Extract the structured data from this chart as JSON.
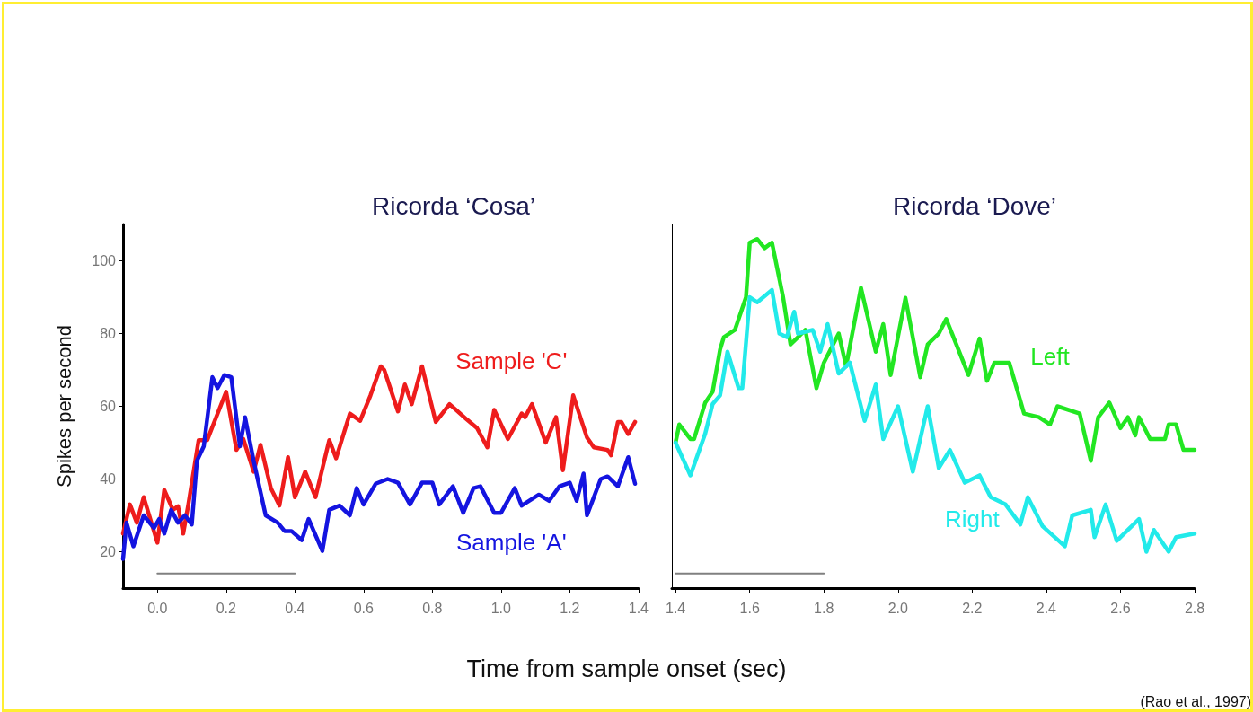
{
  "chart_data": [
    {
      "type": "line",
      "title": "Ricorda ‘Cosa’",
      "xlabel": "Time from sample onset (sec)",
      "ylabel": "Spikes per second",
      "marker": "none",
      "xlim": [
        -0.1,
        1.4
      ],
      "ylim": [
        10,
        110
      ],
      "xticks": [
        {
          "value": 0,
          "label": "0.0"
        },
        0.2,
        0.4,
        0.6,
        0.8,
        {
          "value": 1,
          "label": "1.0"
        },
        1.2,
        1.4
      ],
      "yticks": [
        20,
        40,
        60,
        80,
        100
      ],
      "series": [
        {
          "name": "Sample 'C'",
          "color": "#ee1c1c",
          "x": [
            -0.1,
            -0.08,
            -0.06,
            -0.04,
            0,
            0.02,
            0.045,
            0.06,
            0.075,
            0.09,
            0.12,
            0.145,
            0.2,
            0.23,
            0.25,
            0.28,
            0.3,
            0.33,
            0.355,
            0.38,
            0.4,
            0.43,
            0.46,
            0.5,
            0.52,
            0.56,
            0.59,
            0.62,
            0.65,
            0.66,
            0.7,
            0.72,
            0.74,
            0.77,
            0.81,
            0.85,
            0.9,
            0.93,
            0.96,
            0.98,
            1.02,
            1.06,
            1.07,
            1.09,
            1.13,
            1.16,
            1.18,
            1.21,
            1.25,
            1.27,
            1.31,
            1.32,
            1.34,
            1.35,
            1.37,
            1.39
          ],
          "values": [
            25,
            33,
            28,
            35,
            22.5,
            37,
            31.5,
            32.5,
            25,
            33,
            50.7,
            50.7,
            64,
            48,
            51,
            42,
            49.4,
            37.5,
            32.7,
            46,
            35,
            42,
            35,
            50.7,
            45.7,
            58,
            56,
            63,
            71,
            70,
            58.6,
            66,
            60.6,
            71,
            55.7,
            60.6,
            56.4,
            54,
            48.7,
            59,
            51,
            58,
            57,
            60.6,
            50,
            57,
            42.4,
            63,
            51.4,
            48.7,
            48,
            46.5,
            55.7,
            55.7,
            52.4,
            55.7
          ]
        },
        {
          "name": "Sample 'A'",
          "color": "#1414e0",
          "x": [
            -0.1,
            -0.09,
            -0.07,
            -0.04,
            -0.01,
            0.005,
            0.02,
            0.04,
            0.06,
            0.08,
            0.1,
            0.115,
            0.135,
            0.16,
            0.175,
            0.195,
            0.215,
            0.24,
            0.255,
            0.28,
            0.315,
            0.35,
            0.37,
            0.39,
            0.42,
            0.44,
            0.48,
            0.5,
            0.53,
            0.56,
            0.58,
            0.6,
            0.635,
            0.67,
            0.7,
            0.735,
            0.77,
            0.8,
            0.82,
            0.86,
            0.89,
            0.92,
            0.94,
            0.98,
            1,
            1.04,
            1.06,
            1.11,
            1.14,
            1.17,
            1.2,
            1.22,
            1.24,
            1.25,
            1.29,
            1.31,
            1.34,
            1.37,
            1.39
          ],
          "values": [
            18,
            28,
            21.5,
            30,
            26.5,
            29,
            25,
            31.5,
            28,
            30,
            27.5,
            45,
            49,
            68,
            65,
            68.6,
            68,
            49,
            57,
            45,
            30,
            28,
            25.7,
            25.7,
            23.2,
            29,
            20.2,
            31.5,
            32.7,
            30,
            37.5,
            33,
            38.7,
            40,
            39,
            33,
            39,
            39,
            33,
            38,
            30.7,
            37.5,
            38,
            30.7,
            30.7,
            37.5,
            32.7,
            35.7,
            34,
            38,
            39,
            34,
            41.5,
            30,
            40,
            40.7,
            38,
            46,
            38.7
          ]
        },
        {
          "color": "#808080",
          "x": [
            0,
            0.4
          ],
          "values": [
            14,
            14
          ]
        }
      ]
    },
    {
      "type": "line",
      "title": "Ricorda ‘Dove’",
      "marker": "none",
      "xlim": [
        1.39,
        2.8
      ],
      "ylim": [
        10,
        110
      ],
      "tick_labels": "x",
      "xticks": [
        1.4,
        1.6,
        1.8,
        {
          "value": 2,
          "label": "2.0"
        },
        2.2,
        2.4,
        2.6,
        2.8
      ],
      "yticks": [
        20,
        40,
        60,
        80,
        100
      ],
      "annotations": [
        "(Rao et al., 1997)"
      ],
      "series": [
        {
          "name": "Left",
          "color": "#22e622",
          "x": [
            1.4,
            1.41,
            1.44,
            1.45,
            1.48,
            1.5,
            1.52,
            1.53,
            1.56,
            1.59,
            1.6,
            1.62,
            1.64,
            1.66,
            1.69,
            1.71,
            1.73,
            1.75,
            1.78,
            1.8,
            1.84,
            1.86,
            1.9,
            1.94,
            1.96,
            1.98,
            2.02,
            2.06,
            2.08,
            2.11,
            2.13,
            2.19,
            2.22,
            2.24,
            2.26,
            2.3,
            2.34,
            2.38,
            2.41,
            2.43,
            2.49,
            2.52,
            2.54,
            2.57,
            2.6,
            2.62,
            2.64,
            2.65,
            2.68,
            2.72,
            2.73,
            2.75,
            2.77,
            2.8
          ],
          "values": [
            50,
            55,
            51,
            51,
            61,
            64,
            75.6,
            79,
            81,
            90,
            105,
            106,
            103.5,
            105,
            90,
            77,
            79,
            81,
            65,
            72,
            80,
            71,
            92.6,
            75,
            82.6,
            68.6,
            89.8,
            68,
            77,
            80,
            84,
            68.6,
            78.6,
            67,
            72,
            72,
            58,
            57,
            55,
            60,
            58,
            45,
            57,
            61,
            54,
            57,
            52,
            57,
            51,
            51,
            55,
            55,
            48,
            48
          ]
        },
        {
          "name": "Right",
          "color": "#22eaea",
          "x": [
            1.4,
            1.44,
            1.48,
            1.5,
            1.52,
            1.54,
            1.57,
            1.58,
            1.6,
            1.62,
            1.66,
            1.68,
            1.7,
            1.72,
            1.73,
            1.77,
            1.79,
            1.81,
            1.84,
            1.87,
            1.91,
            1.94,
            1.96,
            2,
            2.04,
            2.08,
            2.11,
            2.14,
            2.18,
            2.22,
            2.25,
            2.29,
            2.33,
            2.35,
            2.39,
            2.45,
            2.47,
            2.52,
            2.53,
            2.56,
            2.59,
            2.62,
            2.65,
            2.67,
            2.69,
            2.73,
            2.75,
            2.8
          ],
          "values": [
            50,
            41,
            52.5,
            60.6,
            63,
            75,
            65,
            65,
            90,
            88.6,
            92,
            80,
            79,
            86,
            80,
            81,
            75,
            82.6,
            69,
            72,
            56,
            66,
            51,
            60,
            42,
            60,
            43,
            48,
            39,
            41,
            35,
            33,
            27.5,
            35,
            27,
            21.5,
            30,
            31.5,
            24,
            33,
            23,
            26,
            29,
            20,
            26,
            20,
            24,
            25
          ]
        },
        {
          "color": "#808080",
          "x": [
            1.4,
            1.8
          ],
          "values": [
            14,
            14
          ]
        }
      ]
    }
  ]
}
